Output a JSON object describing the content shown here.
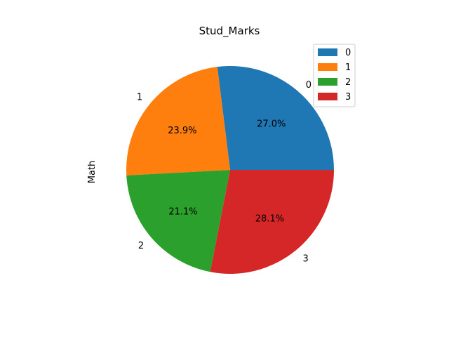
{
  "chart_data": {
    "type": "pie",
    "title": "Stud_Marks",
    "ylabel": "Math",
    "categories": [
      "0",
      "1",
      "2",
      "3"
    ],
    "percentages": [
      "27.0%",
      "23.9%",
      "21.1%",
      "28.1%"
    ],
    "values": [
      27.0,
      23.9,
      21.1,
      28.1
    ],
    "colors": [
      "#1f77b4",
      "#ff7f0e",
      "#2ca02c",
      "#d62728"
    ],
    "legend": {
      "placement": "top-right",
      "entries": [
        "0",
        "1",
        "2",
        "3"
      ]
    }
  }
}
